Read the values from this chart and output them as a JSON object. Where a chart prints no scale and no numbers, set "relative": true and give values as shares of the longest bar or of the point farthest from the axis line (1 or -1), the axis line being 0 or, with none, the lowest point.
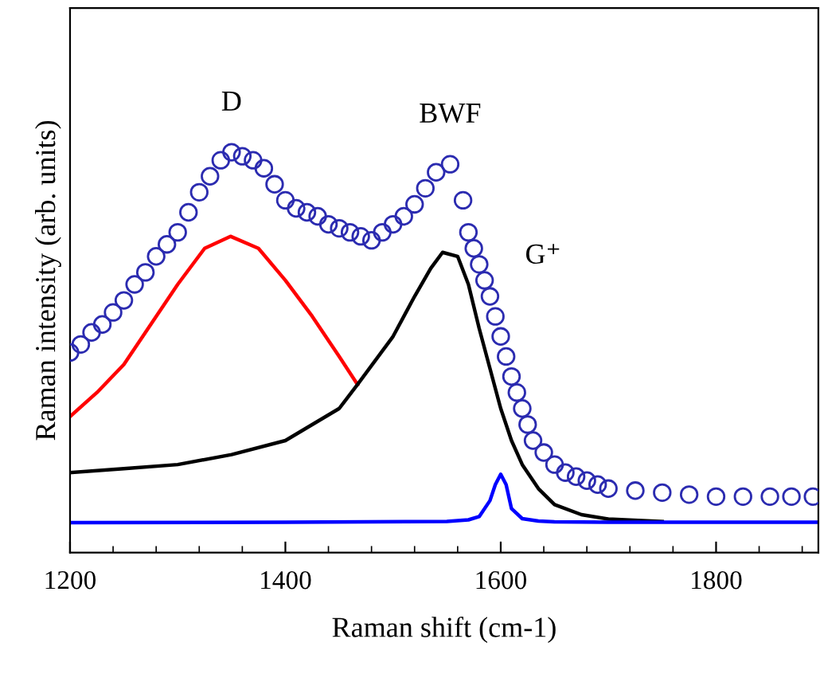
{
  "chart_data": {
    "type": "line",
    "relative": true,
    "xlabel": "Raman shift (cm-1)",
    "ylabel": "Raman intensity (arb. units)",
    "xlim": [
      1200,
      1895
    ],
    "xticks": [
      1200,
      {
        "value": 1240,
        "label": null
      },
      {
        "value": 1280,
        "label": null
      },
      {
        "value": 1320,
        "label": null
      },
      {
        "value": 1360,
        "label": null
      },
      1400,
      {
        "value": 1440,
        "label": null
      },
      {
        "value": 1480,
        "label": null
      },
      {
        "value": 1520,
        "label": null
      },
      {
        "value": 1560,
        "label": null
      },
      1600,
      {
        "value": 1640,
        "label": null
      },
      {
        "value": 1680,
        "label": null
      },
      {
        "value": 1720,
        "label": null
      },
      {
        "value": 1760,
        "label": null
      },
      1800,
      {
        "value": 1840,
        "label": null
      },
      {
        "value": 1880,
        "label": null
      }
    ],
    "tick_labels": "x",
    "grid": false,
    "legend": false,
    "series": [
      {
        "type": "scatter",
        "marker": "circle",
        "color": "#2b2bb0",
        "x": [
          1200,
          1210,
          1220,
          1230,
          1240,
          1250,
          1260,
          1270,
          1280,
          1290,
          1300,
          1310,
          1320,
          1330,
          1340,
          1350,
          1360,
          1370,
          1380,
          1390,
          1400,
          1410,
          1420,
          1430,
          1440,
          1450,
          1460,
          1470,
          1480,
          1490,
          1500,
          1510,
          1520,
          1530,
          1540,
          1553,
          1565,
          1570,
          1575,
          1580,
          1585,
          1590,
          1595,
          1600,
          1605,
          1610,
          1615,
          1620,
          1625,
          1630,
          1640,
          1650,
          1660,
          1670,
          1680,
          1690,
          1700,
          1725,
          1750,
          1775,
          1800,
          1825,
          1850,
          1870,
          1890
        ],
        "values": [
          0.5,
          0.52,
          0.55,
          0.57,
          0.6,
          0.63,
          0.67,
          0.7,
          0.74,
          0.77,
          0.8,
          0.85,
          0.9,
          0.94,
          0.98,
          1.0,
          0.99,
          0.98,
          0.96,
          0.92,
          0.88,
          0.86,
          0.85,
          0.84,
          0.82,
          0.81,
          0.8,
          0.79,
          0.78,
          0.8,
          0.82,
          0.84,
          0.87,
          0.91,
          0.95,
          0.97,
          0.88,
          0.8,
          0.76,
          0.72,
          0.68,
          0.64,
          0.59,
          0.54,
          0.49,
          0.44,
          0.4,
          0.36,
          0.32,
          0.28,
          0.25,
          0.22,
          0.2,
          0.19,
          0.18,
          0.17,
          0.16,
          0.155,
          0.15,
          0.145,
          0.14,
          0.14,
          0.14,
          0.14,
          0.14
        ]
      },
      {
        "color": "#ff0000",
        "x": [
          1200,
          1225,
          1250,
          1275,
          1300,
          1325,
          1349,
          1375,
          1400,
          1425,
          1450,
          1467
        ],
        "values": [
          0.34,
          0.4,
          0.47,
          0.57,
          0.67,
          0.76,
          0.79,
          0.76,
          0.68,
          0.59,
          0.49,
          0.42
        ]
      },
      {
        "color": "#000000",
        "x": [
          1200,
          1250,
          1300,
          1350,
          1400,
          1450,
          1467,
          1500,
          1520,
          1535,
          1546,
          1560,
          1570,
          1580,
          1590,
          1600,
          1610,
          1620,
          1635,
          1650,
          1675,
          1700,
          1750
        ],
        "values": [
          0.2,
          0.21,
          0.22,
          0.245,
          0.28,
          0.36,
          0.42,
          0.54,
          0.64,
          0.71,
          0.75,
          0.74,
          0.67,
          0.56,
          0.46,
          0.36,
          0.28,
          0.22,
          0.16,
          0.12,
          0.095,
          0.084,
          0.078
        ]
      },
      {
        "color": "#0000ff",
        "x": [
          1200,
          1400,
          1550,
          1570,
          1580,
          1590,
          1595,
          1600,
          1605,
          1610,
          1620,
          1635,
          1650,
          1700,
          1895
        ],
        "values": [
          0.075,
          0.076,
          0.078,
          0.082,
          0.09,
          0.13,
          0.17,
          0.196,
          0.17,
          0.11,
          0.085,
          0.079,
          0.077,
          0.076,
          0.076
        ]
      }
    ],
    "annotations": [
      {
        "text": "D",
        "x": 1350,
        "y": 1.0
      },
      {
        "text": "BWF",
        "x": 1553,
        "y": 0.97
      },
      {
        "text": "G⁺",
        "x": 1590,
        "y": 0.64
      }
    ]
  }
}
